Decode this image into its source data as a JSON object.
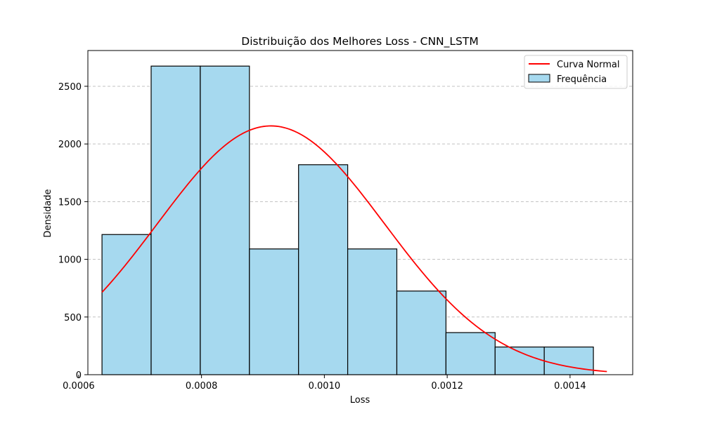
{
  "chart_data": {
    "type": "bar",
    "title": "Distribuição dos Melhores Loss - CNN_LSTM",
    "xlabel": "Loss",
    "ylabel": "Densidade",
    "xlim": [
      0.000615,
      0.001502
    ],
    "ylim": [
      0,
      2810
    ],
    "xticks": [
      0.0006,
      0.0008,
      0.001,
      0.0012,
      0.0014
    ],
    "xtick_labels": [
      "0.0006",
      "0.0008",
      "0.0010",
      "0.0012",
      "0.0014"
    ],
    "yticks": [
      0,
      500,
      1000,
      1500,
      2000,
      2500
    ],
    "ytick_labels": [
      "0",
      "500",
      "1000",
      "1500",
      "2000",
      "2500"
    ],
    "grid": "y-dashed",
    "legend_position": "top-right",
    "histogram": {
      "name": "Frequência",
      "color": "#a6d9ef",
      "edge_color": "#000000",
      "bin_edges": [
        0.000638,
        0.000718,
        0.000798,
        0.000878,
        0.000958,
        0.001038,
        0.001118,
        0.001198,
        0.001278,
        0.001358,
        0.001438
      ],
      "values": [
        1215,
        2675,
        2675,
        1090,
        1820,
        1090,
        725,
        365,
        240,
        240
      ]
    },
    "curve": {
      "name": "Curva Normal",
      "color": "#ff0000",
      "mean": 0.000913,
      "std": 0.000185,
      "x_range": [
        0.000638,
        0.00146
      ]
    }
  }
}
